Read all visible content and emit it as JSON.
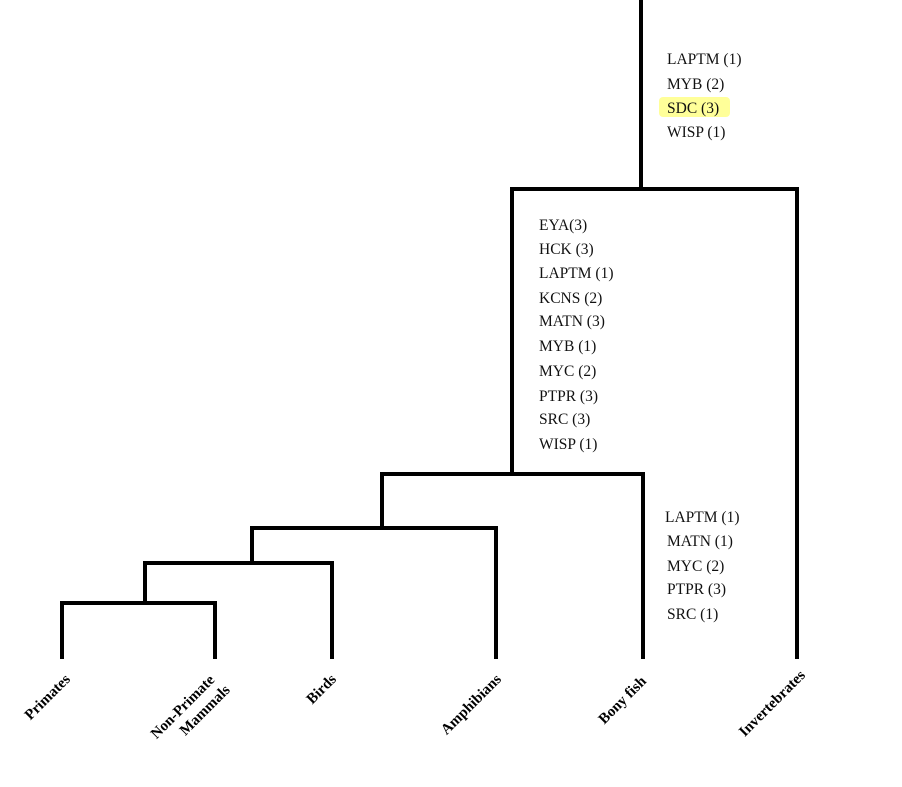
{
  "colors": {
    "line": "#000000",
    "text": "#111111",
    "highlight": "#ffff99"
  },
  "gene_groups": {
    "root": {
      "genes": [
        "LAPTM (1)",
        "MYB (2)",
        "SDC (3)",
        "WISP (1)"
      ],
      "highlighted": "SDC (3)"
    },
    "vertebrates": {
      "genes": [
        "EYA(3)",
        "HCK (3)",
        "LAPTM (1)",
        "KCNS (2)",
        "MATN (3)",
        "MYB (1)",
        "MYC (2)",
        "PTPR (3)",
        "SRC (3)",
        "WISP (1)"
      ]
    },
    "bony_fish": {
      "genes": [
        "LAPTM (1)",
        "MATN (1)",
        "MYC (2)",
        "PTPR (3)",
        "SRC (1)"
      ]
    }
  },
  "taxa": {
    "primates": [
      "Primates"
    ],
    "non_primate_mammals": [
      "Non-Primate",
      "Mammals"
    ],
    "birds": [
      "Birds"
    ],
    "amphibians": [
      "Amphibians"
    ],
    "bony_fish": [
      "Bony fish"
    ],
    "invertebrates": [
      "Invertebrates"
    ]
  }
}
